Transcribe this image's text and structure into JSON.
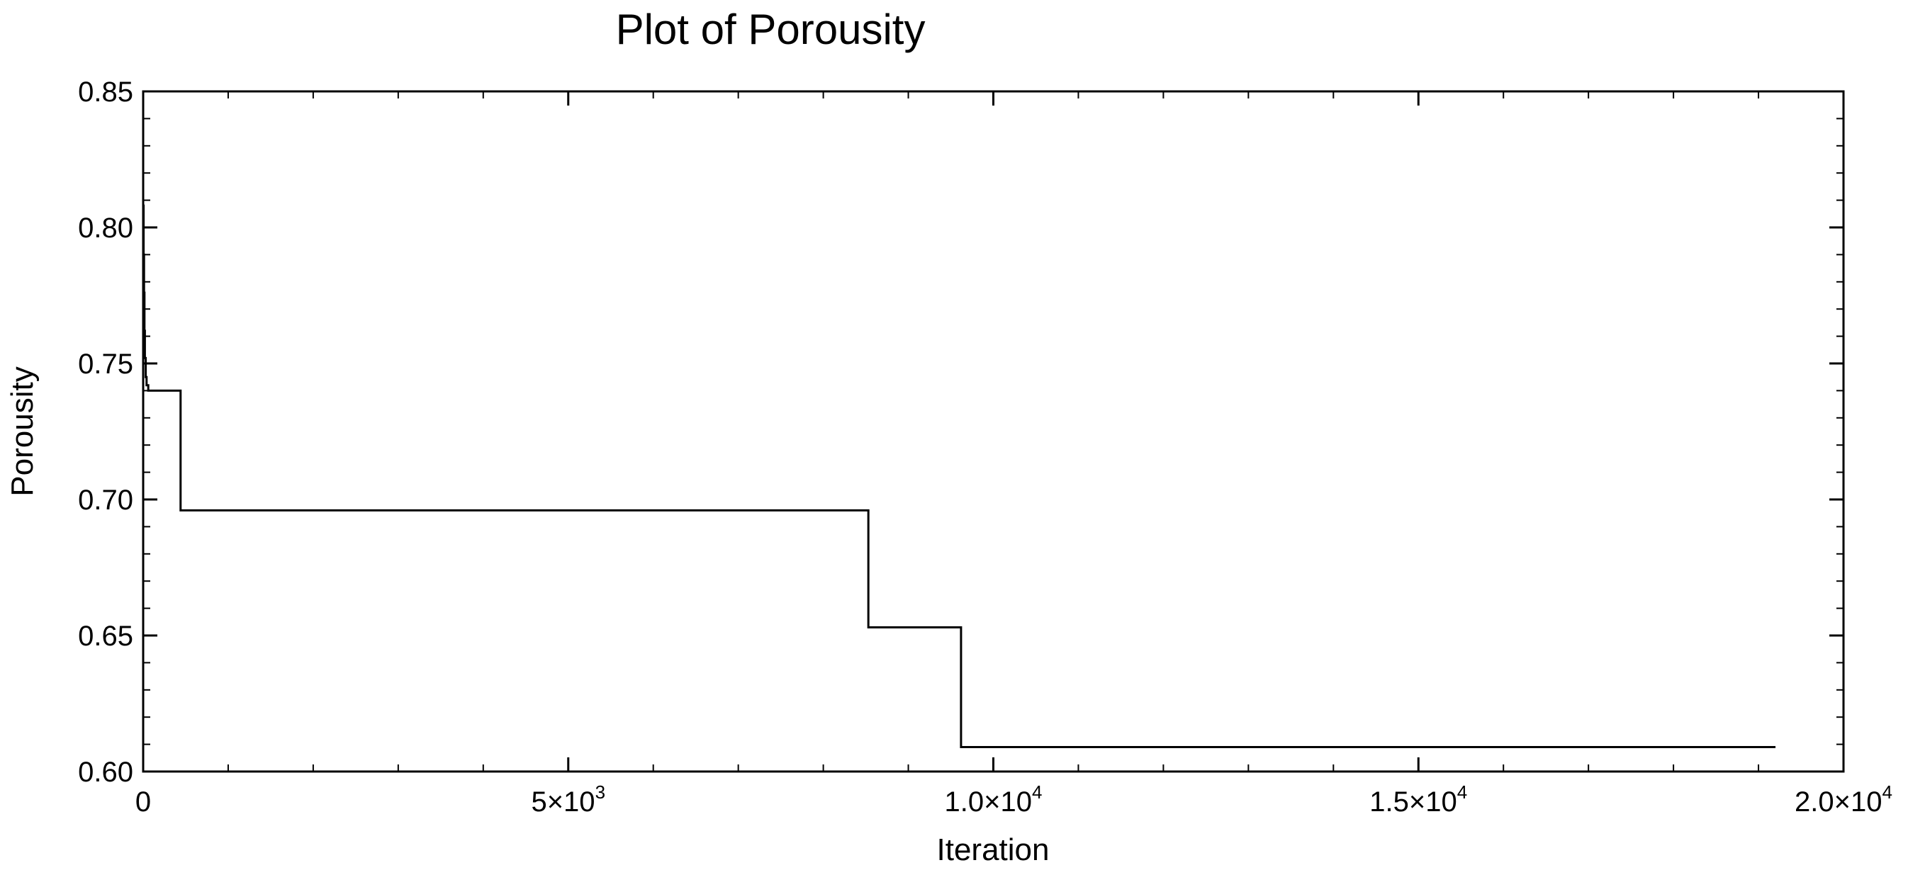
{
  "chart_data": {
    "type": "line",
    "title": "Plot of Porousity",
    "xlabel": "Iteration",
    "ylabel": "Porousity",
    "xlim": [
      0,
      20000
    ],
    "ylim": [
      0.6,
      0.85
    ],
    "grid": false,
    "line_color": "#000000",
    "x_ticks": [
      {
        "value": 0,
        "label": "0",
        "sup": ""
      },
      {
        "value": 5000,
        "label": "5×10",
        "sup": "3"
      },
      {
        "value": 10000,
        "label": "1.0×10",
        "sup": "4"
      },
      {
        "value": 15000,
        "label": "1.5×10",
        "sup": "4"
      },
      {
        "value": 20000,
        "label": "2.0×10",
        "sup": "4"
      }
    ],
    "y_ticks": [
      {
        "value": 0.6,
        "label": "0.60"
      },
      {
        "value": 0.65,
        "label": "0.65"
      },
      {
        "value": 0.7,
        "label": "0.70"
      },
      {
        "value": 0.75,
        "label": "0.75"
      },
      {
        "value": 0.8,
        "label": "0.80"
      },
      {
        "value": 0.85,
        "label": "0.85"
      }
    ],
    "series": [
      {
        "step": true,
        "x": [
          0,
          5,
          10,
          15,
          20,
          30,
          40,
          60,
          440,
          8530,
          9620,
          19200
        ],
        "y": [
          0.808,
          0.79,
          0.776,
          0.762,
          0.752,
          0.745,
          0.742,
          0.74,
          0.696,
          0.653,
          0.609,
          0.609
        ]
      }
    ]
  }
}
